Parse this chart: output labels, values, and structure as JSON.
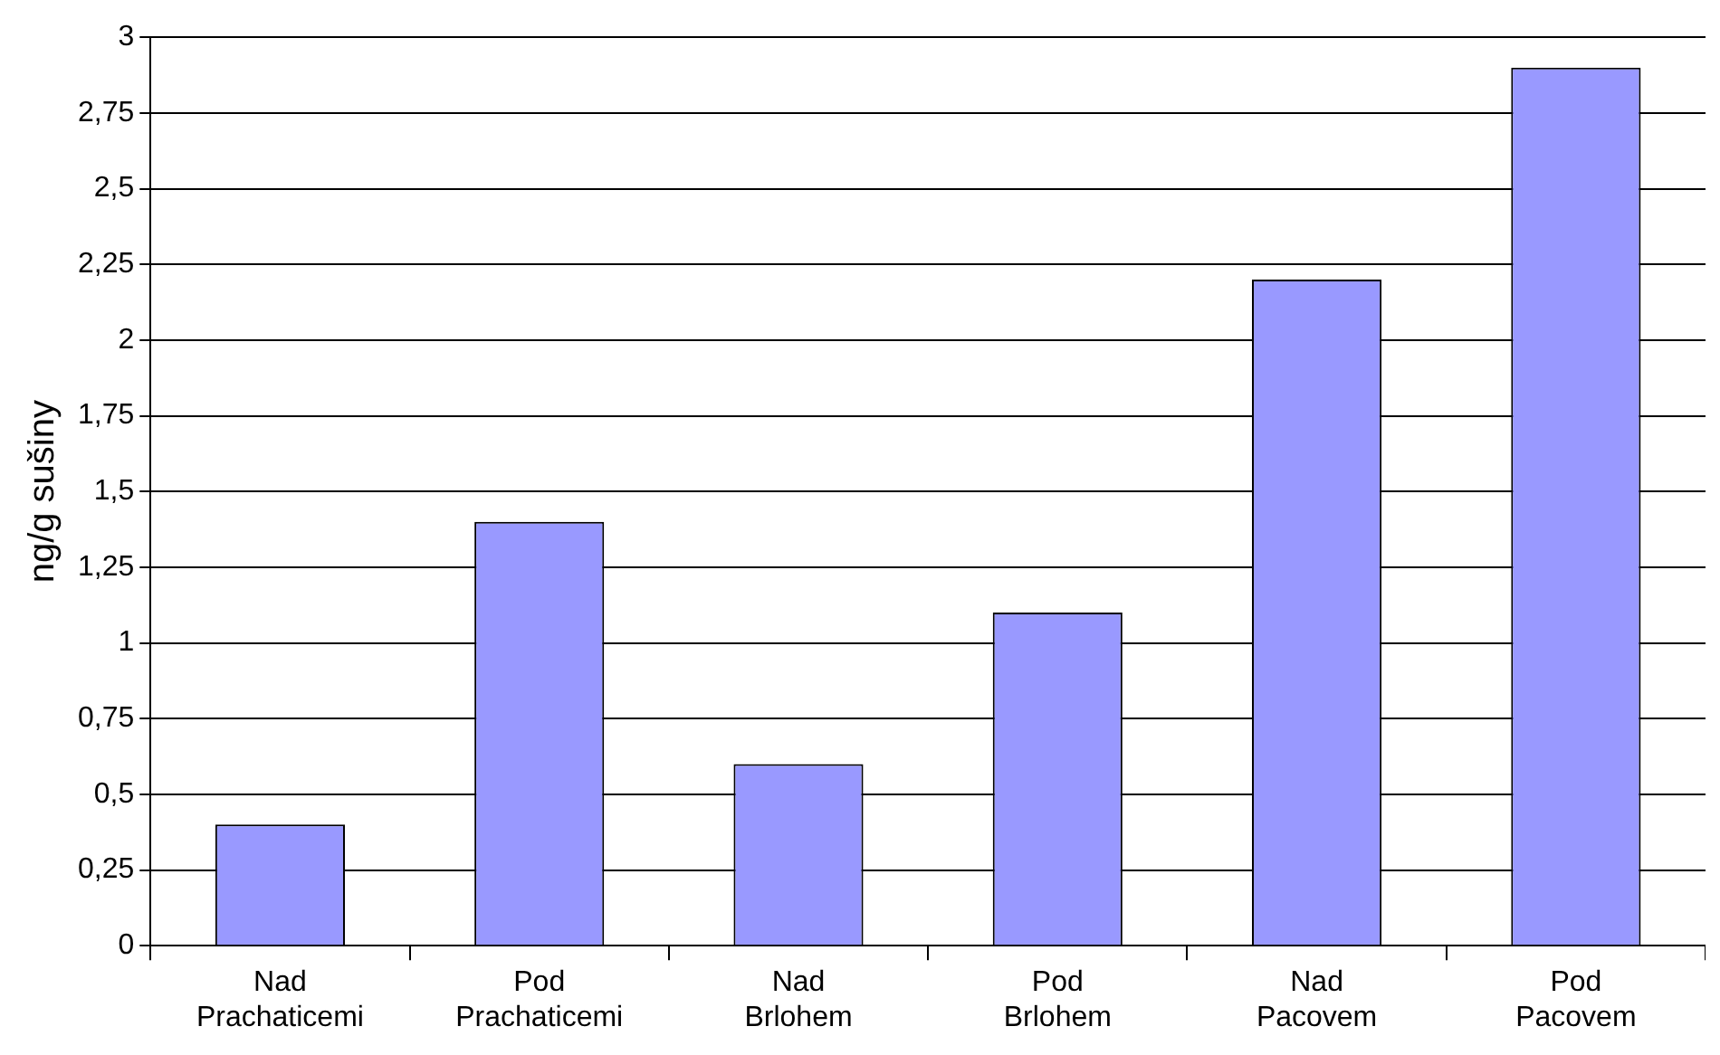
{
  "chart_data": {
    "type": "bar",
    "ylabel": "ng/g sušiny",
    "categories": [
      "Nad Prachaticemi",
      "Pod Prachaticemi",
      "Nad Brlohem",
      "Pod Brlohem",
      "Nad Pacovem",
      "Pod Pacovem"
    ],
    "values": [
      0.4,
      1.4,
      0.6,
      1.1,
      2.2,
      2.9
    ],
    "color": "#9999ff",
    "ylim": [
      0,
      3
    ],
    "yticks": [
      0,
      {
        "value": 0.25,
        "label": "0,25"
      },
      {
        "value": 0.5,
        "label": "0,5"
      },
      {
        "value": 0.75,
        "label": "0,75"
      },
      1,
      {
        "value": 1.25,
        "label": "1,25"
      },
      {
        "value": 1.5,
        "label": "1,5"
      },
      {
        "value": 1.75,
        "label": "1,75"
      },
      2,
      {
        "value": 2.25,
        "label": "2,25"
      },
      {
        "value": 2.5,
        "label": "2,5"
      },
      {
        "value": 2.75,
        "label": "2,75"
      },
      3
    ],
    "grid": "y",
    "legend": false
  }
}
